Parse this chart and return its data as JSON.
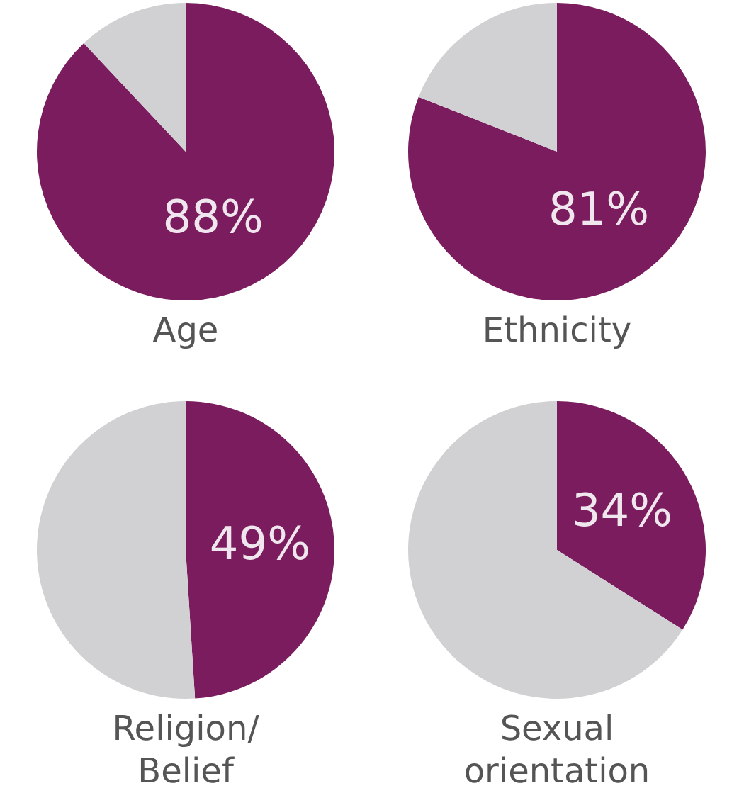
{
  "chart_data": [
    {
      "type": "pie",
      "title": "Age",
      "categories": [
        null,
        null
      ],
      "values": [
        88,
        12
      ],
      "colors": [
        "#7b1c5e",
        "#d1d1d3"
      ],
      "value_labels": [
        "88%",
        null
      ]
    },
    {
      "type": "pie",
      "title": "Ethnicity",
      "categories": [
        null,
        null
      ],
      "values": [
        81,
        19
      ],
      "colors": [
        "#7b1c5e",
        "#d1d1d3"
      ],
      "value_labels": [
        "81%",
        null
      ]
    },
    {
      "type": "pie",
      "title": "Religion/ Belief",
      "categories": [
        null,
        null
      ],
      "values": [
        49,
        51
      ],
      "colors": [
        "#7b1c5e",
        "#d1d1d3"
      ],
      "value_labels": [
        "49%",
        null
      ]
    },
    {
      "type": "pie",
      "title": "Sexual orientation",
      "categories": [
        null,
        null
      ],
      "values": [
        34,
        66
      ],
      "colors": [
        "#7b1c5e",
        "#d1d1d3"
      ],
      "value_labels": [
        "34%",
        null
      ]
    }
  ]
}
